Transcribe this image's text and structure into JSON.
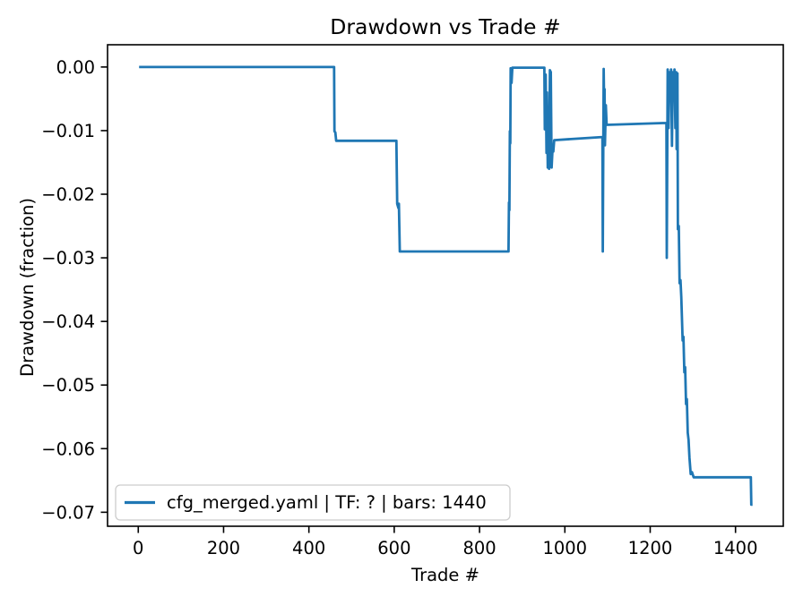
{
  "window": {
    "background": "#ffffff"
  },
  "chart_data": {
    "type": "line",
    "title": "Drawdown vs Trade #",
    "xlabel": "Trade #",
    "ylabel": "Drawdown (fraction)",
    "xlim": [
      -72,
      1512
    ],
    "ylim": [
      -0.0722,
      0.0035
    ],
    "grid": false,
    "x_ticks": [
      0,
      200,
      400,
      600,
      800,
      1000,
      1200,
      1400
    ],
    "x_tick_labels": [
      "0",
      "200",
      "400",
      "600",
      "800",
      "1000",
      "1200",
      "1400"
    ],
    "y_ticks": [
      0.0,
      -0.01,
      -0.02,
      -0.03,
      -0.04,
      -0.05,
      -0.06,
      -0.07
    ],
    "y_tick_labels": [
      "0.00",
      "−0.01",
      "−0.02",
      "−0.03",
      "−0.04",
      "−0.05",
      "−0.06",
      "−0.07"
    ],
    "colors": {
      "line": "#1f77b4",
      "spine": "#000000",
      "legend_border": "#cccccc",
      "background": "#ffffff"
    },
    "legend": {
      "position": "lower left",
      "entries": [
        {
          "label": "cfg_merged.yaml | TF: ? | bars: 1440",
          "color": "#1f77b4"
        }
      ]
    },
    "series": [
      {
        "name": "cfg_merged.yaml | TF: ? | bars: 1440",
        "color": "#1f77b4",
        "points": [
          [
            2,
            0
          ],
          [
            459,
            0
          ],
          [
            460,
            -0.0101
          ],
          [
            462,
            -0.0103
          ],
          [
            464,
            -0.0116
          ],
          [
            605,
            -0.0116
          ],
          [
            607,
            -0.0215
          ],
          [
            610,
            -0.0222
          ],
          [
            611,
            -0.0215
          ],
          [
            613,
            -0.029
          ],
          [
            868,
            -0.029
          ],
          [
            869,
            -0.0213
          ],
          [
            870,
            -0.0225
          ],
          [
            871,
            -0.0101
          ],
          [
            872,
            -0.012
          ],
          [
            873,
            -0.0002
          ],
          [
            874,
            -0.0022
          ],
          [
            875,
            -0.0025
          ],
          [
            877,
            -0.0001
          ],
          [
            952,
            -0.0001
          ],
          [
            953,
            -0.0098
          ],
          [
            954,
            -0.0097
          ],
          [
            955,
            -0.0012
          ],
          [
            957,
            -0.0135
          ],
          [
            958,
            -0.004
          ],
          [
            960,
            -0.0158
          ],
          [
            962,
            -0.0145
          ],
          [
            963,
            -0.016
          ],
          [
            965,
            -0.0005
          ],
          [
            967,
            -0.0008
          ],
          [
            969,
            -0.0158
          ],
          [
            971,
            -0.013
          ],
          [
            973,
            -0.0133
          ],
          [
            975,
            -0.0115
          ],
          [
            1088,
            -0.011
          ],
          [
            1089,
            -0.029
          ],
          [
            1091,
            -0.0003
          ],
          [
            1092,
            -0.006
          ],
          [
            1093,
            -0.0035
          ],
          [
            1094,
            -0.0123
          ],
          [
            1096,
            -0.006
          ],
          [
            1098,
            -0.0091
          ],
          [
            1238,
            -0.0088
          ],
          [
            1239,
            -0.03
          ],
          [
            1241,
            -0.0004
          ],
          [
            1243,
            -0.0096
          ],
          [
            1245,
            -0.0008
          ],
          [
            1247,
            -0.004
          ],
          [
            1249,
            -0.0004
          ],
          [
            1251,
            -0.0124
          ],
          [
            1253,
            -0.0008
          ],
          [
            1255,
            -0.004
          ],
          [
            1257,
            -0.0004
          ],
          [
            1259,
            -0.0096
          ],
          [
            1261,
            -0.0008
          ],
          [
            1262,
            -0.0129
          ],
          [
            1264,
            -0.001
          ],
          [
            1265,
            -0.0255
          ],
          [
            1267,
            -0.025
          ],
          [
            1269,
            -0.034
          ],
          [
            1271,
            -0.0335
          ],
          [
            1273,
            -0.0362
          ],
          [
            1276,
            -0.043
          ],
          [
            1278,
            -0.0424
          ],
          [
            1280,
            -0.048
          ],
          [
            1282,
            -0.0472
          ],
          [
            1284,
            -0.053
          ],
          [
            1286,
            -0.0522
          ],
          [
            1288,
            -0.0575
          ],
          [
            1290,
            -0.0586
          ],
          [
            1292,
            -0.0614
          ],
          [
            1295,
            -0.064
          ],
          [
            1298,
            -0.0637
          ],
          [
            1302,
            -0.0645
          ],
          [
            1436,
            -0.0645
          ],
          [
            1437,
            -0.0688
          ],
          [
            1440,
            -0.0688
          ]
        ]
      }
    ]
  }
}
